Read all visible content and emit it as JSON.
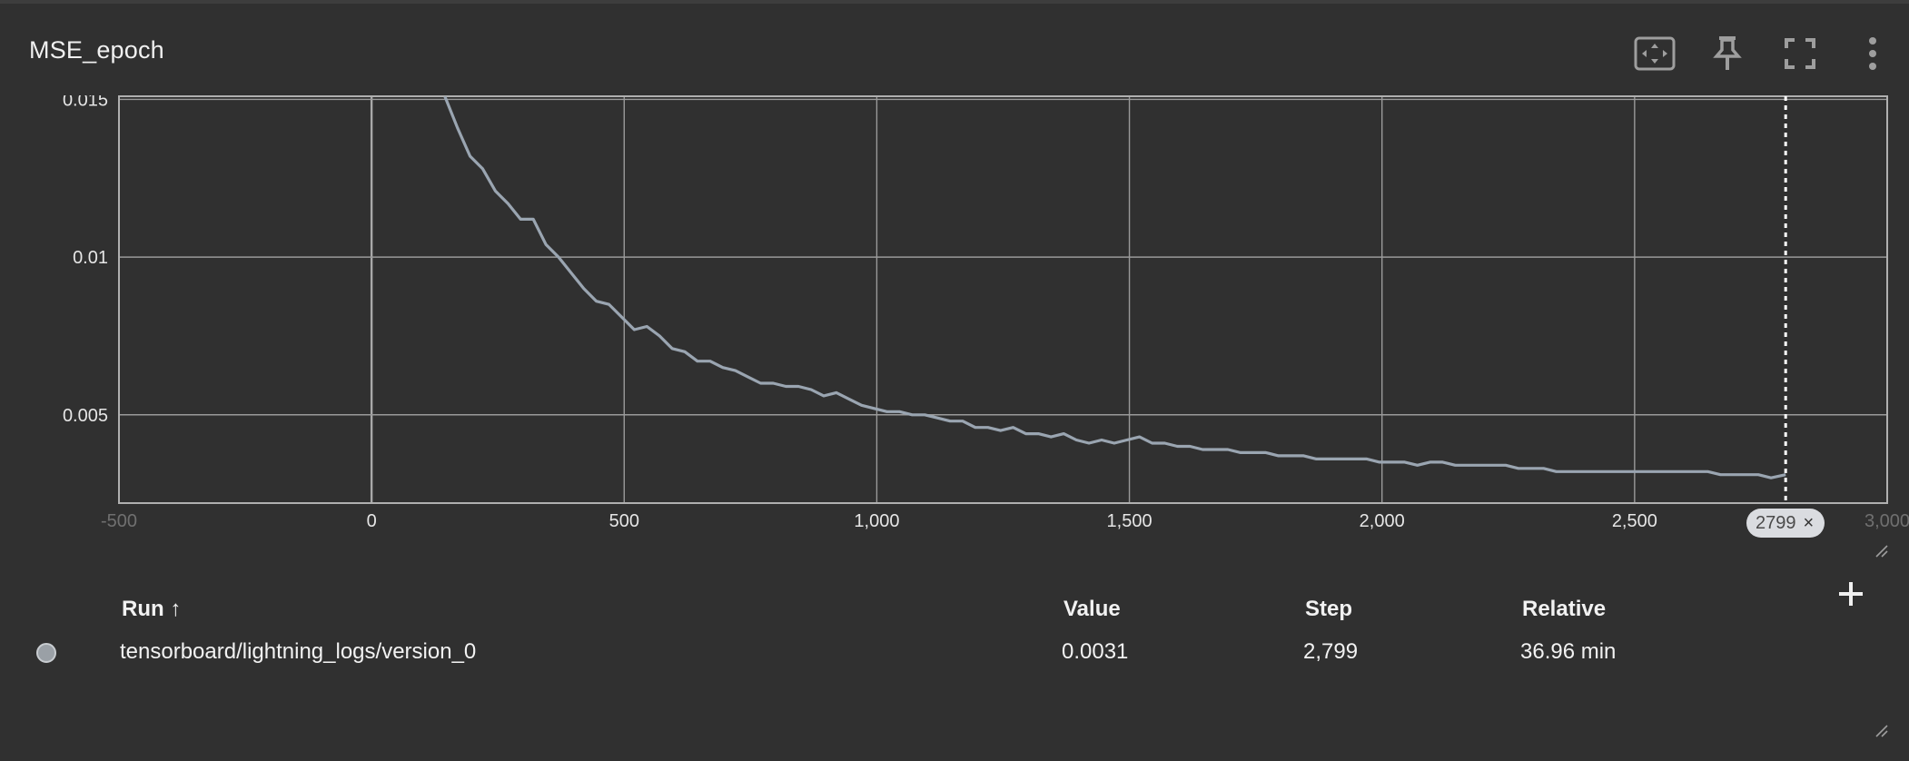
{
  "card": {
    "title": "MSE_epoch"
  },
  "toolbar": {
    "buttons": [
      {
        "name": "fit-domain-button",
        "icon": "fit-to-data-icon"
      },
      {
        "name": "pin-button",
        "icon": "pin-icon"
      },
      {
        "name": "fullscreen-button",
        "icon": "fullscreen-icon"
      },
      {
        "name": "more-menu-button",
        "icon": "more-vert-icon"
      }
    ]
  },
  "chart_data": {
    "type": "line",
    "title": "",
    "xlabel": "",
    "ylabel": "",
    "xlim": [
      -500,
      3000
    ],
    "ylim": [
      0.0022,
      0.0151
    ],
    "x_ticks": [
      -500,
      0,
      500,
      1000,
      1500,
      2000,
      2500,
      3000
    ],
    "x_tick_labels": [
      "-500",
      "0",
      "500",
      "1,000",
      "1,500",
      "2,000",
      "2,500",
      "3,000"
    ],
    "y_ticks": [
      0.005,
      0.01,
      0.015
    ],
    "y_tick_labels": [
      "0.005",
      "0.01",
      "0.015"
    ],
    "grid": true,
    "line_color": "#9aa5b1",
    "hover_step": 2799,
    "series": [
      {
        "x": [
          145,
          170,
          195,
          220,
          245,
          270,
          295,
          320,
          345,
          370,
          395,
          420,
          445,
          470,
          495,
          520,
          545,
          570,
          595,
          620,
          645,
          670,
          695,
          720,
          745,
          770,
          795,
          820,
          845,
          870,
          895,
          920,
          945,
          970,
          995,
          1020,
          1045,
          1070,
          1095,
          1120,
          1145,
          1170,
          1195,
          1220,
          1245,
          1270,
          1295,
          1320,
          1345,
          1370,
          1395,
          1420,
          1445,
          1470,
          1495,
          1520,
          1545,
          1570,
          1595,
          1620,
          1645,
          1670,
          1695,
          1720,
          1745,
          1770,
          1795,
          1820,
          1845,
          1870,
          1895,
          1920,
          1945,
          1970,
          1995,
          2020,
          2045,
          2070,
          2095,
          2120,
          2145,
          2170,
          2195,
          2220,
          2245,
          2270,
          2295,
          2320,
          2345,
          2370,
          2395,
          2420,
          2445,
          2470,
          2495,
          2520,
          2545,
          2570,
          2595,
          2620,
          2645,
          2670,
          2695,
          2720,
          2745,
          2770,
          2799
        ],
        "y": [
          0.0151,
          0.0141,
          0.0132,
          0.0128,
          0.0121,
          0.0117,
          0.0112,
          0.0112,
          0.0104,
          0.01,
          0.0095,
          0.009,
          0.0086,
          0.0085,
          0.0081,
          0.0077,
          0.0078,
          0.0075,
          0.0071,
          0.007,
          0.0067,
          0.0067,
          0.0065,
          0.0064,
          0.0062,
          0.006,
          0.006,
          0.0059,
          0.0059,
          0.0058,
          0.0056,
          0.0057,
          0.0055,
          0.0053,
          0.0052,
          0.0051,
          0.0051,
          0.005,
          0.005,
          0.0049,
          0.0048,
          0.0048,
          0.0046,
          0.0046,
          0.0045,
          0.0046,
          0.0044,
          0.0044,
          0.0043,
          0.0044,
          0.0042,
          0.0041,
          0.0042,
          0.0041,
          0.0042,
          0.0043,
          0.0041,
          0.0041,
          0.004,
          0.004,
          0.0039,
          0.0039,
          0.0039,
          0.0038,
          0.0038,
          0.0038,
          0.0037,
          0.0037,
          0.0037,
          0.0036,
          0.0036,
          0.0036,
          0.0036,
          0.0036,
          0.0035,
          0.0035,
          0.0035,
          0.0034,
          0.0035,
          0.0035,
          0.0034,
          0.0034,
          0.0034,
          0.0034,
          0.0034,
          0.0033,
          0.0033,
          0.0033,
          0.0032,
          0.0032,
          0.0032,
          0.0032,
          0.0032,
          0.0032,
          0.0032,
          0.0032,
          0.0032,
          0.0032,
          0.0032,
          0.0032,
          0.0032,
          0.0031,
          0.0031,
          0.0031,
          0.0031,
          0.003,
          0.0031
        ]
      }
    ]
  },
  "table": {
    "headers": {
      "run": "Run ↑",
      "value": "Value",
      "step": "Step",
      "relative": "Relative"
    },
    "rows": [
      {
        "run": "tensorboard/lightning_logs/version_0",
        "value": "0.0031",
        "step": "2,799",
        "relative": "36.96 min",
        "color": "#9aa0a6"
      }
    ]
  },
  "step_chip": {
    "label": "2799",
    "close": "×"
  }
}
